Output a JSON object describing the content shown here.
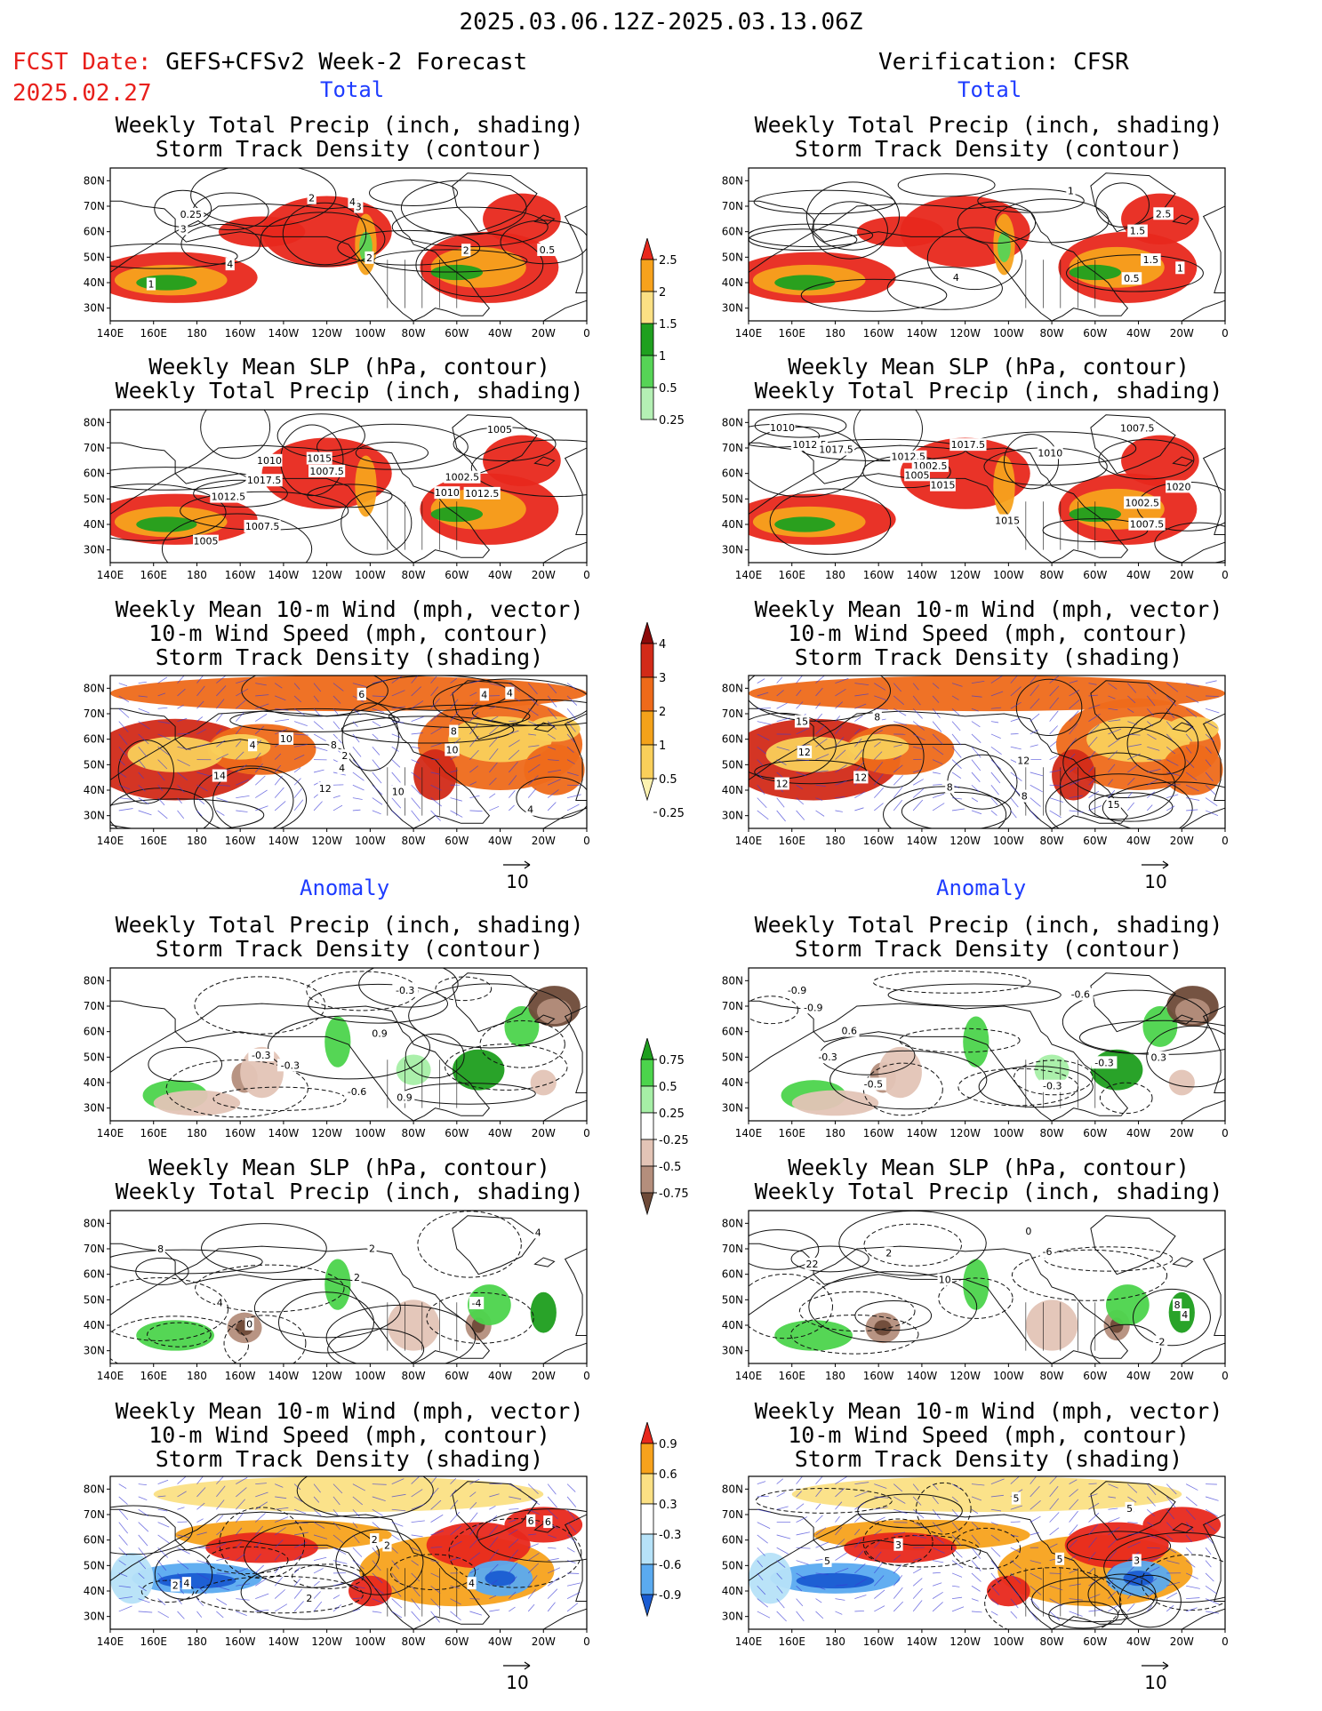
{
  "header": {
    "date_range": "2025.03.06.12Z-2025.03.13.06Z",
    "fcst_label": "FCST Date:",
    "fcst_model": "GEFS+CFSv2 Week-2 Forecast",
    "fcst_date": "2025.02.27",
    "verification": "Verification: CFSR"
  },
  "sections": {
    "total": "Total",
    "anomaly": "Anomaly"
  },
  "panel_titles": {
    "precip_storm": [
      "Weekly Total Precip (inch, shading)",
      "Storm Track Density (contour)"
    ],
    "slp_precip": [
      "Weekly Mean SLP (hPa, contour)",
      "Weekly Total Precip (inch, shading)"
    ],
    "wind_storm": [
      "Weekly Mean 10-m Wind (mph, vector)",
      "10-m Wind Speed (mph, contour)",
      "Storm Track Density (shading)"
    ]
  },
  "axes": {
    "lon_ticks": [
      "140E",
      "160E",
      "180",
      "160W",
      "140W",
      "120W",
      "100W",
      "80W",
      "60W",
      "40W",
      "20W",
      "0"
    ],
    "lat_ticks": [
      "80N",
      "70N",
      "60N",
      "50N",
      "40N",
      "30N"
    ]
  },
  "vector_scale": "10",
  "colorbars": {
    "precip_total": {
      "labels": [
        "2.5",
        "2",
        "1.5",
        "1",
        "0.5",
        "0.25"
      ],
      "colors": [
        "#e8281c",
        "#f7a21c",
        "#fbe084",
        "#1fa01f",
        "#56d456",
        "#b4f0b4"
      ]
    },
    "storm_total": {
      "labels": [
        "4",
        "3",
        "2",
        "1",
        "0.5",
        "0.25"
      ],
      "colors": [
        "#8c0a0a",
        "#d22a18",
        "#ee6a1a",
        "#f4a21a",
        "#f9cf5a",
        "#fcf2b0"
      ]
    },
    "precip_anom": {
      "labels": [
        "0.75",
        "0.5",
        "0.25",
        "-0.25",
        "-0.5",
        "-0.75"
      ],
      "colors": [
        "#1e9e1e",
        "#4cd44c",
        "#a6efa6",
        "#ffffff",
        "#e3c4b6",
        "#b48e7c",
        "#6e4a38"
      ]
    },
    "storm_anom": {
      "labels": [
        "0.9",
        "0.6",
        "0.3",
        "-0.3",
        "-0.6",
        "-0.9"
      ],
      "colors": [
        "#e8281c",
        "#f7a21c",
        "#fbe084",
        "#ffffff",
        "#b6e2f8",
        "#5aaaf0",
        "#1a5cd2"
      ]
    }
  },
  "panels": [
    {
      "id": "fc-total-precip",
      "field": "precip_total",
      "labels": [
        "2",
        "3",
        "2",
        "1",
        "0.5",
        "0.25",
        "4",
        "3",
        "2",
        "4"
      ]
    },
    {
      "id": "obs-total-precip",
      "field": "precip_total",
      "labels": [
        "2.5",
        "1.5",
        "0.5",
        "1.5",
        "4",
        "1",
        "1"
      ]
    },
    {
      "id": "fc-total-slp",
      "field": "slp_total",
      "labels": [
        "1007.5",
        "1012.5",
        "1005",
        "1002.5",
        "1005",
        "1007.5",
        "1015",
        "1017.5",
        "1010",
        "1010",
        "1012.5"
      ]
    },
    {
      "id": "obs-total-slp",
      "field": "slp_total",
      "labels": [
        "1020",
        "1015",
        "1017.5",
        "1010",
        "1012.5",
        "1002.5",
        "1007.5",
        "1015",
        "1012.5",
        "1010",
        "1017.5",
        "1002.5",
        "1005",
        "1007.5"
      ]
    },
    {
      "id": "fc-total-wind",
      "field": "storm_total",
      "labels": [
        "4",
        "4",
        "8",
        "6",
        "10",
        "8",
        "10",
        "2",
        "4",
        "4",
        "12",
        "14",
        "10",
        "4"
      ]
    },
    {
      "id": "obs-total-wind",
      "field": "storm_total",
      "labels": [
        "12",
        "8",
        "12",
        "8",
        "12",
        "15",
        "15",
        "12",
        "8"
      ]
    },
    {
      "id": "fc-anom-precip",
      "field": "precip_anom",
      "labels": [
        "-0.6",
        "0.9",
        "-0.3",
        "-0.3",
        "0.9",
        "-0.3"
      ]
    },
    {
      "id": "obs-anom-precip",
      "field": "precip_anom",
      "labels": [
        "-0.9",
        "0.3",
        "-0.3",
        "0.6",
        "-0.9",
        "-0.5",
        "-0.6",
        "-0.3",
        "-0.3"
      ]
    },
    {
      "id": "fc-anom-slp",
      "field": "slp_anom",
      "labels": [
        "2",
        "0",
        "4",
        "8",
        "2",
        "-4",
        "4"
      ]
    },
    {
      "id": "obs-anom-slp",
      "field": "slp_anom",
      "labels": [
        "22",
        "0",
        "2",
        "-2",
        "8",
        "10",
        "-6",
        "4"
      ]
    },
    {
      "id": "fc-anom-wind",
      "field": "storm_anom",
      "labels": [
        "2",
        "6",
        "2",
        "4",
        "2",
        "6",
        "4",
        "2"
      ]
    },
    {
      "id": "obs-anom-wind",
      "field": "storm_anom",
      "labels": [
        "5",
        "3",
        "3",
        "5",
        "5",
        "5"
      ]
    }
  ]
}
